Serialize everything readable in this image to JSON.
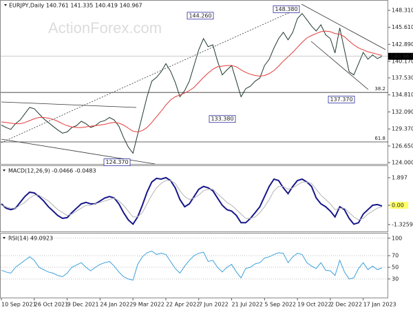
{
  "chart_data": [
    {
      "type": "line",
      "title": "EURJPY,Daily 140.761 141.335 140.419 140.967",
      "watermark": "ActionForex.com",
      "categories": [
        "10 Sep 2021",
        null,
        null,
        null,
        null,
        null,
        null,
        "26 Oct 2021",
        null,
        null,
        null,
        null,
        null,
        null,
        "9 Dec 2021",
        null,
        null,
        null,
        null,
        null,
        null,
        "24 Jan 2022",
        null,
        null,
        null,
        null,
        null,
        null,
        "9 Mar 2022",
        null,
        null,
        null,
        null,
        null,
        null,
        "22 Apr 2022",
        null,
        null,
        null,
        null,
        null,
        null,
        "7 Jun 2022",
        null,
        null,
        null,
        null,
        null,
        null,
        "21 Jul 2022",
        null,
        null,
        null,
        null,
        null,
        null,
        "5 Sep 2022",
        null,
        null,
        null,
        null,
        null,
        null,
        "19 Oct 2022",
        null,
        null,
        null,
        null,
        null,
        null,
        "2 Dec 2022",
        null,
        null,
        null,
        null,
        null,
        null,
        "17 Jan 2023",
        null,
        null,
        null,
        null
      ],
      "series": [
        {
          "color": "#1e3a2a",
          "values": [
            130.0,
            129.6,
            129.3,
            130.2,
            130.8,
            131.8,
            132.8,
            132.6,
            131.8,
            131.0,
            130.4,
            129.8,
            129.2,
            128.7,
            128.9,
            129.6,
            129.9,
            130.6,
            130.2,
            129.6,
            129.9,
            130.5,
            130.7,
            131.2,
            130.8,
            129.8,
            128.0,
            126.5,
            125.5,
            128.5,
            131.5,
            134.5,
            137.0,
            137.6,
            138.5,
            139.8,
            138.6,
            136.8,
            134.5,
            135.5,
            137.0,
            139.5,
            142.0,
            143.8,
            142.5,
            142.8,
            140.2,
            138.0,
            138.8,
            139.5,
            137.0,
            134.5,
            135.8,
            136.2,
            137.0,
            137.5,
            139.5,
            140.5,
            142.3,
            143.8,
            144.8,
            143.6,
            144.8,
            147.0,
            147.8,
            146.8,
            145.8,
            145.0,
            146.0,
            144.4,
            143.8,
            141.5,
            145.5,
            142.0,
            138.5,
            138.0,
            139.8,
            141.6,
            140.5,
            141.2,
            140.6,
            140.967
          ]
        },
        {
          "color": "#e23a3a",
          "values": [
            130.5,
            130.4,
            130.3,
            130.2,
            130.2,
            130.4,
            130.7,
            131.0,
            131.2,
            131.2,
            131.1,
            130.9,
            130.6,
            130.2,
            129.9,
            129.7,
            129.6,
            129.6,
            129.7,
            129.8,
            129.9,
            130.0,
            130.1,
            130.3,
            130.4,
            130.3,
            130.0,
            129.5,
            129.0,
            128.9,
            129.1,
            129.6,
            130.4,
            131.3,
            132.2,
            133.2,
            134.0,
            134.5,
            134.8,
            135.1,
            135.5,
            136.0,
            136.8,
            137.6,
            138.3,
            138.9,
            139.3,
            139.4,
            139.5,
            139.5,
            139.3,
            138.8,
            138.4,
            138.1,
            137.9,
            137.8,
            137.9,
            138.2,
            138.7,
            139.4,
            140.2,
            140.9,
            141.6,
            142.4,
            143.2,
            143.9,
            144.3,
            144.6,
            144.9,
            145.0,
            144.9,
            144.6,
            144.5,
            144.1,
            143.4,
            142.8,
            142.3,
            142.0,
            141.7,
            141.5,
            141.3,
            141.1
          ]
        }
      ],
      "ylim": [
        123.78,
        149.85
      ],
      "yticks": [
        {
          "value": 148.31,
          "label": "148.310"
        },
        {
          "value": 145.61,
          "label": "145.610"
        },
        {
          "value": 142.89,
          "label": "142.890"
        },
        {
          "value": 140.17,
          "label": "140.170"
        },
        {
          "value": 137.53,
          "label": "137.530"
        },
        {
          "value": 134.81,
          "label": "134.810"
        },
        {
          "value": 132.09,
          "label": "132.090"
        },
        {
          "value": 129.37,
          "label": "129.370"
        },
        {
          "value": 126.65,
          "label": "126.650"
        },
        {
          "value": 124.0,
          "label": "124.000"
        }
      ],
      "annotations": [
        {
          "value": 148.38,
          "label": "148.380"
        },
        {
          "value": 144.26,
          "label": "144.260"
        },
        {
          "value": 133.38,
          "label": "133.380"
        },
        {
          "value": 124.37,
          "label": "124.370"
        },
        {
          "value": 137.37,
          "label": "137.370"
        }
      ],
      "fib_levels": [
        {
          "ratio": 38.2,
          "price": 135.2
        },
        {
          "ratio": 61.8,
          "price": 127.3
        }
      ]
    },
    {
      "type": "line",
      "title": "MACD(12,26,9) -0.0466 -0.0483",
      "series": [
        {
          "color": "#16168a",
          "values": [
            0.1,
            -0.2,
            -0.3,
            -0.2,
            0.2,
            0.6,
            0.9,
            0.85,
            0.6,
            0.3,
            -0.1,
            -0.4,
            -0.7,
            -0.9,
            -0.85,
            -0.5,
            -0.2,
            0.1,
            0.2,
            0.1,
            0.1,
            0.3,
            0.5,
            0.6,
            0.5,
            0.1,
            -0.5,
            -1.0,
            -1.3,
            -0.8,
            0.0,
            0.9,
            1.6,
            1.85,
            1.8,
            1.9,
            1.7,
            1.2,
            0.4,
            -0.1,
            0.1,
            0.6,
            1.1,
            1.3,
            1.2,
            1.0,
            0.5,
            0.0,
            -0.3,
            -0.4,
            -0.7,
            -1.2,
            -1.2,
            -0.9,
            -0.5,
            -0.1,
            0.6,
            1.3,
            1.8,
            1.7,
            1.2,
            0.8,
            1.3,
            1.7,
            1.8,
            1.6,
            1.3,
            0.5,
            0.1,
            -0.1,
            -0.4,
            -0.8,
            -0.1,
            -0.3,
            -0.9,
            -1.3,
            -1.2,
            -0.6,
            -0.3,
            0.0,
            0.05,
            -0.05
          ]
        },
        {
          "color": "#b4b4b4",
          "values": [
            0.0,
            -0.1,
            -0.2,
            -0.2,
            0.0,
            0.2,
            0.5,
            0.7,
            0.7,
            0.5,
            0.3,
            0.0,
            -0.3,
            -0.5,
            -0.7,
            -0.6,
            -0.4,
            -0.2,
            0.0,
            0.0,
            0.1,
            0.2,
            0.3,
            0.4,
            0.5,
            0.3,
            0.0,
            -0.4,
            -0.8,
            -0.8,
            -0.5,
            0.1,
            0.7,
            1.2,
            1.5,
            1.7,
            1.7,
            1.5,
            1.0,
            0.6,
            0.4,
            0.5,
            0.7,
            1.0,
            1.1,
            1.1,
            0.8,
            0.5,
            0.2,
            0.0,
            -0.3,
            -0.6,
            -0.9,
            -0.9,
            -0.8,
            -0.5,
            -0.1,
            0.4,
            1.0,
            1.3,
            1.3,
            1.1,
            1.2,
            1.4,
            1.6,
            1.6,
            1.5,
            1.1,
            0.7,
            0.4,
            0.1,
            -0.3,
            -0.2,
            -0.2,
            -0.5,
            -0.8,
            -1.0,
            -0.9,
            -0.6,
            -0.4,
            -0.2,
            -0.1
          ]
        }
      ],
      "ylim": [
        -1.8,
        2.7
      ],
      "yticks": [
        1.897,
        {
          "value": 0,
          "label": "0.00"
        },
        -1.3259
      ]
    },
    {
      "type": "line",
      "title": "RSI(14) 49.0923",
      "series": [
        {
          "color": "#3aa0dc",
          "values": [
            45,
            42,
            40,
            50,
            56,
            62,
            68,
            62,
            50,
            46,
            42,
            40,
            36,
            34,
            40,
            50,
            54,
            58,
            50,
            44,
            50,
            55,
            58,
            60,
            52,
            42,
            34,
            30,
            28,
            55,
            68,
            75,
            78,
            72,
            74,
            72,
            60,
            48,
            40,
            52,
            62,
            70,
            74,
            76,
            60,
            62,
            50,
            42,
            50,
            55,
            42,
            32,
            48,
            50,
            56,
            58,
            66,
            68,
            72,
            75,
            74,
            58,
            68,
            74,
            72,
            58,
            52,
            48,
            58,
            45,
            44,
            36,
            62,
            42,
            30,
            32,
            48,
            58,
            46,
            52,
            46,
            49
          ]
        }
      ],
      "ylim": [
        -2,
        108
      ],
      "yticks": [
        100,
        70,
        50,
        30
      ]
    }
  ]
}
